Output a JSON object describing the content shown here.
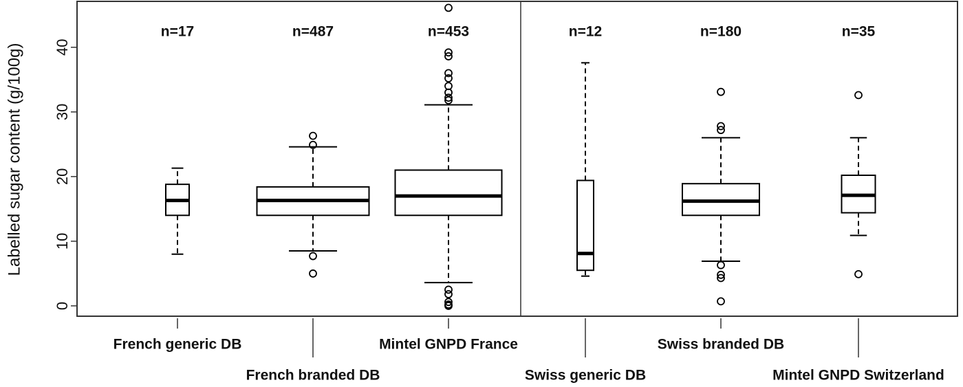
{
  "chart_data": {
    "type": "box",
    "y_label": "Labelled sugar content (g/100g)",
    "categories": [
      "French generic DB",
      "French branded DB",
      "Mintel GNPD France",
      "Swiss generic DB",
      "Swiss branded DB",
      "Mintel GNPD Switzerland"
    ],
    "n_labels": [
      "n=17",
      "n=487",
      "n=453",
      "n=12",
      "n=180",
      "n=35"
    ],
    "ylim": [
      -1.6,
      47.1
    ],
    "yticks": [
      0,
      10,
      20,
      30,
      40
    ],
    "color": "#000000",
    "boxes": [
      {
        "whisker_low": 8.0,
        "q1": 14.0,
        "median": 16.3,
        "q3": 18.8,
        "whisker_high": 21.3,
        "outliers": []
      },
      {
        "whisker_low": 8.5,
        "q1": 14.0,
        "median": 16.3,
        "q3": 18.4,
        "whisker_high": 24.6,
        "outliers": [
          5.0,
          7.7,
          24.9,
          26.3
        ]
      },
      {
        "whisker_low": 3.6,
        "q1": 14.0,
        "median": 17.0,
        "q3": 21.0,
        "whisker_high": 31.1,
        "outliers": [
          0,
          0.2,
          0.6,
          1.8,
          2.5,
          31.8,
          32.2,
          33.0,
          34.0,
          35.2,
          36.0,
          38.6,
          39.2,
          46.1
        ]
      },
      {
        "whisker_low": 4.6,
        "q1": 5.5,
        "median": 8.1,
        "q3": 19.4,
        "whisker_high": 37.6,
        "outliers": []
      },
      {
        "whisker_low": 6.9,
        "q1": 14.0,
        "median": 16.2,
        "q3": 18.9,
        "whisker_high": 26.0,
        "outliers": [
          0.7,
          4.3,
          4.8,
          6.3,
          27.2,
          27.8,
          33.1
        ]
      },
      {
        "whisker_low": 10.9,
        "q1": 14.4,
        "median": 17.1,
        "q3": 20.2,
        "whisker_high": 26.0,
        "outliers": [
          4.9,
          32.6
        ]
      }
    ]
  }
}
